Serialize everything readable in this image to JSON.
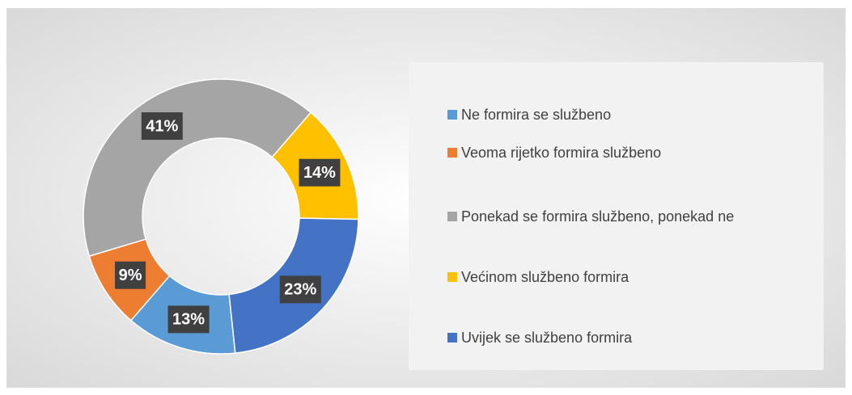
{
  "chart_data": {
    "type": "donut",
    "categories": [
      "Ne formira se službeno",
      "Veoma rijetko formira službeno",
      "Ponekad se formira službeno, ponekad ne",
      "Većinom službeno formira",
      "Uvijek se službeno formira"
    ],
    "values": [
      13,
      9,
      41,
      14,
      23
    ],
    "value_labels": [
      "13%",
      "9%",
      "41%",
      "14%",
      "23%"
    ],
    "colors": [
      "#5b9bd5",
      "#ed7d31",
      "#a5a5a5",
      "#ffc000",
      "#4472c4"
    ],
    "legend": "right"
  }
}
